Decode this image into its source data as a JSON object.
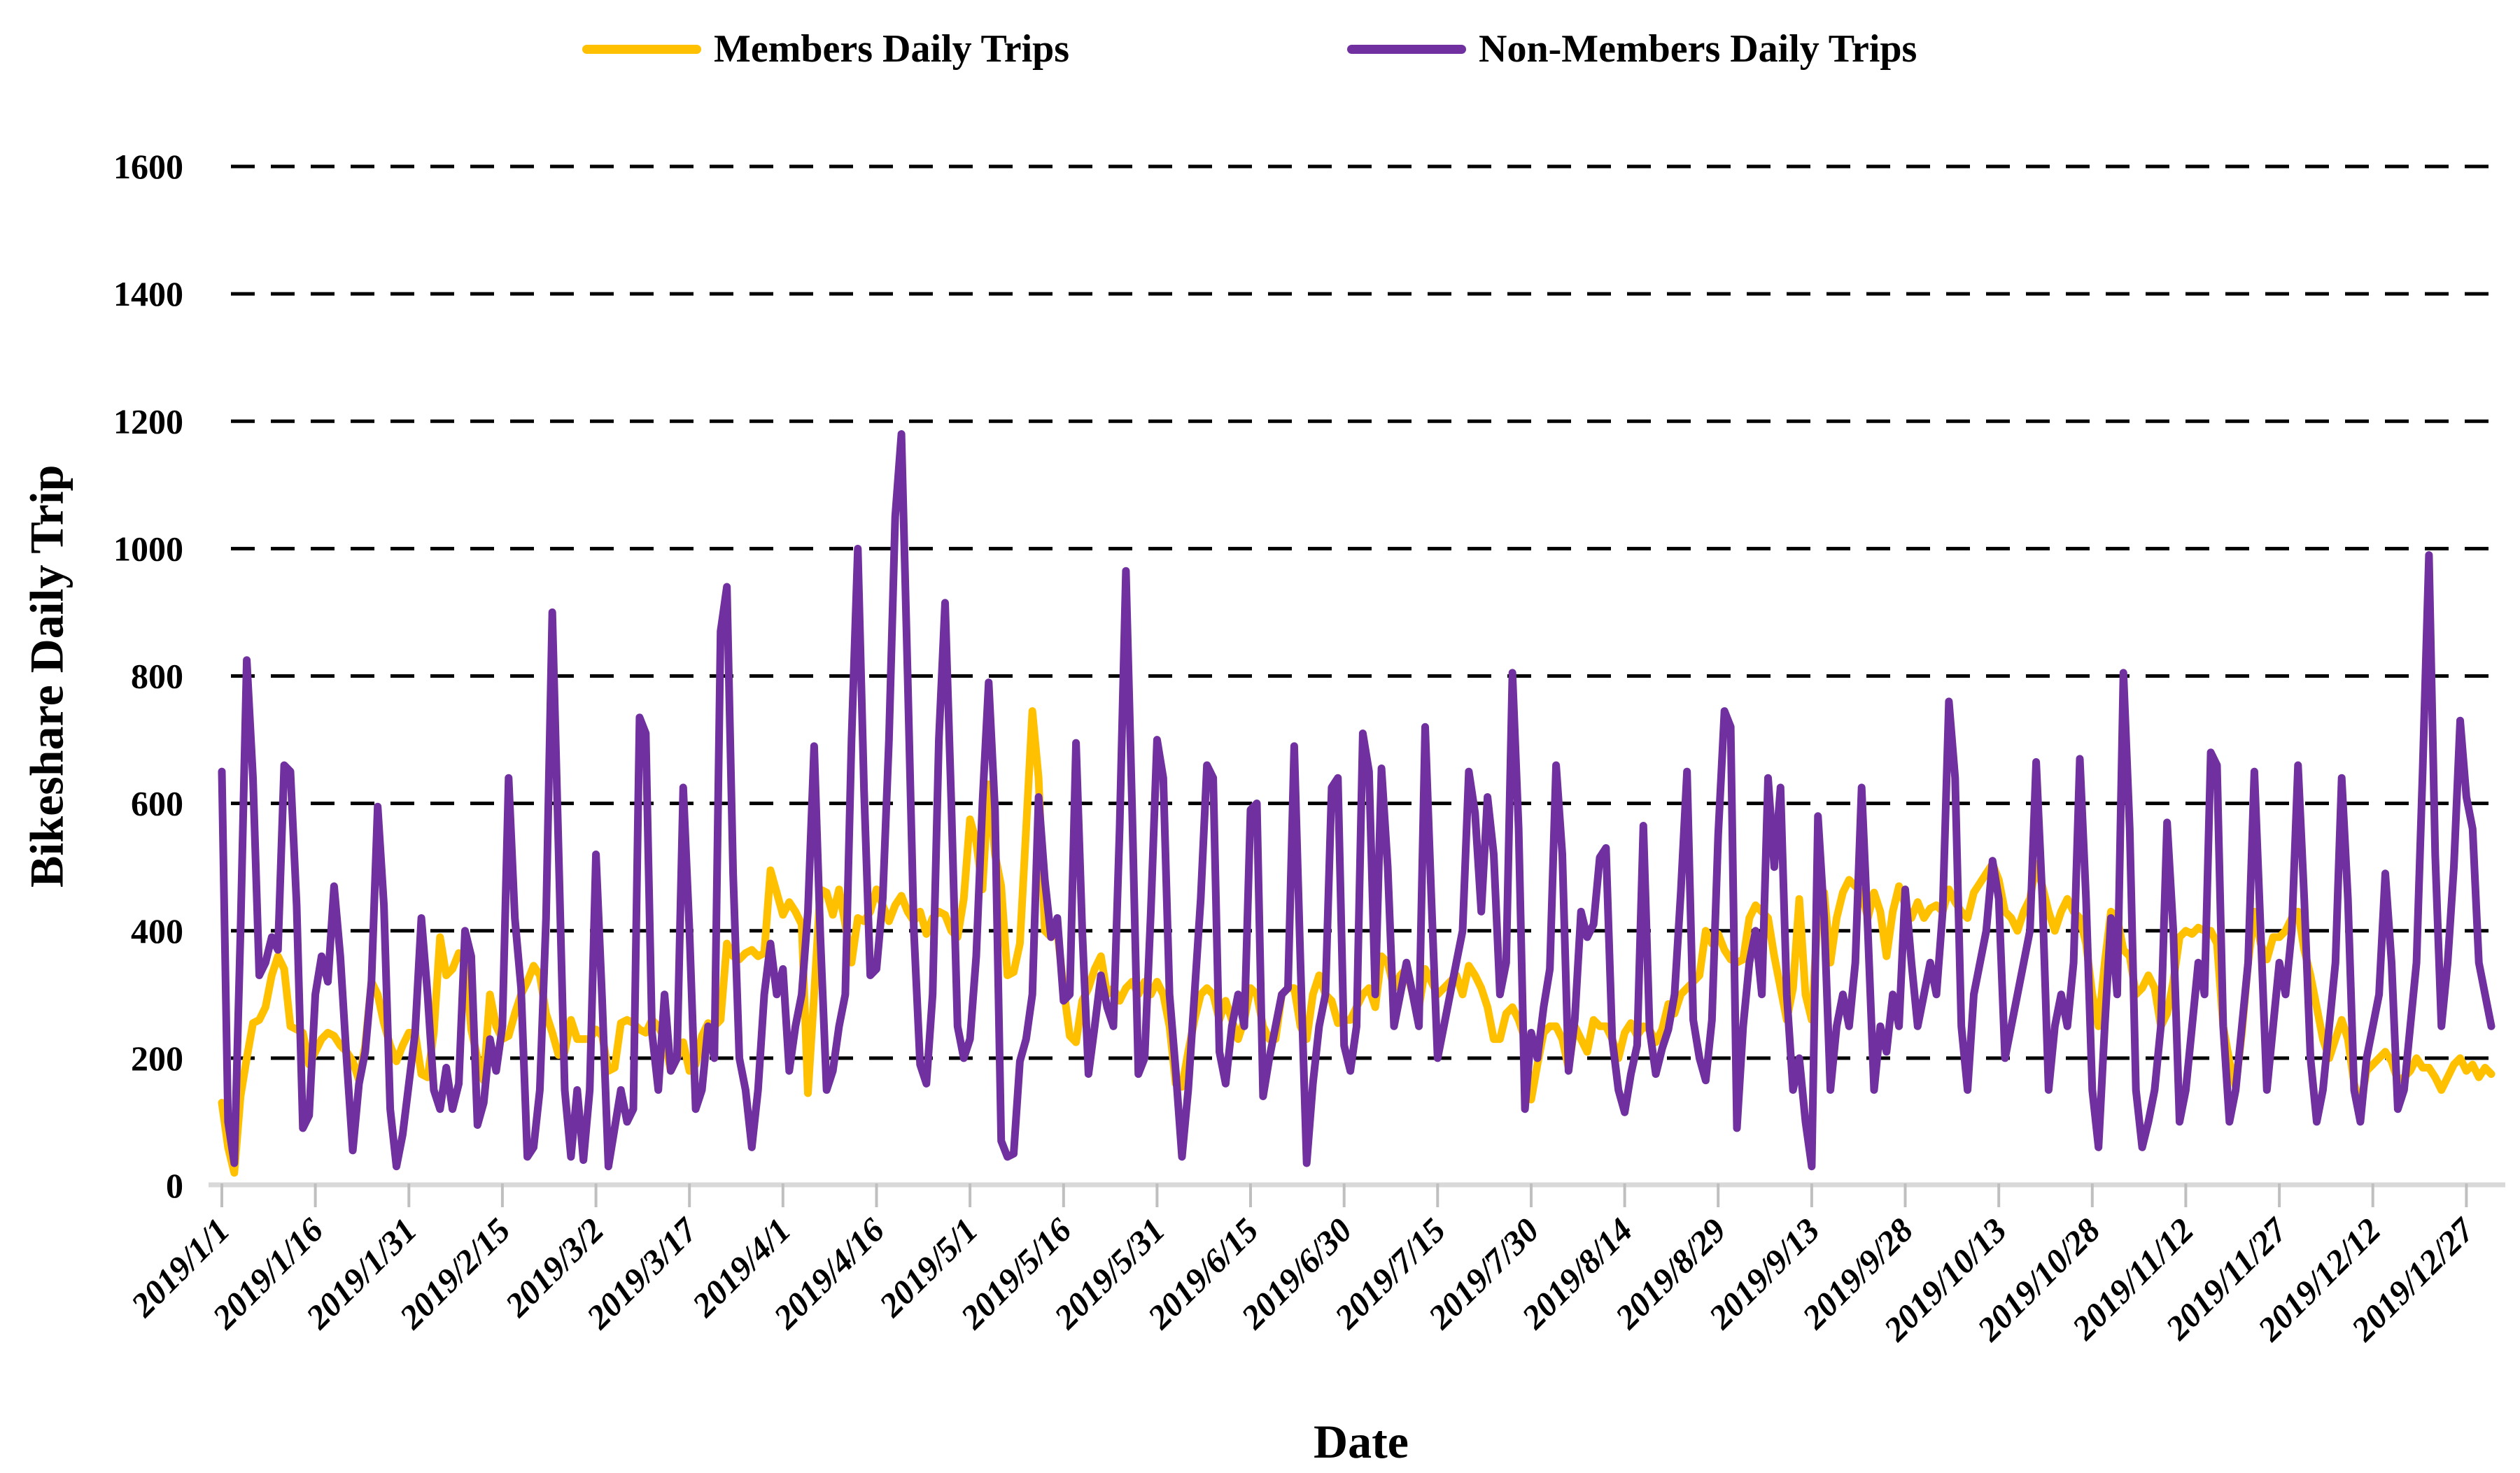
{
  "page": {
    "background": "#FFFFFF"
  },
  "legend": {
    "items": [
      {
        "label": "Members Daily Trips",
        "color": "#FFC000"
      },
      {
        "label": "Non-Members Daily Trips",
        "color": "#7030A0"
      }
    ]
  },
  "y_axis": {
    "title": "Bikeshare Daily Trip",
    "ticks": [
      0,
      200,
      400,
      600,
      800,
      1000,
      1200,
      1400,
      1600
    ],
    "min": 0,
    "max": 1600
  },
  "x_axis": {
    "title": "Date",
    "tick_interval_days": 15,
    "tick_labels": [
      "2019/1/1",
      "2019/1/16",
      "2019/1/31",
      "2019/2/15",
      "2019/3/2",
      "2019/3/17",
      "2019/4/1",
      "2019/4/16",
      "2019/5/1",
      "2019/5/16",
      "2019/5/31",
      "2019/6/15",
      "2019/6/30",
      "2019/7/15",
      "2019/7/30",
      "2019/8/14",
      "2019/8/29",
      "2019/9/13",
      "2019/9/28",
      "2019/10/13",
      "2019/10/28",
      "2019/11/12",
      "2019/11/27",
      "2019/12/12",
      "2019/12/27"
    ]
  },
  "chart_data": {
    "type": "line",
    "title": "",
    "xlabel": "Date",
    "ylabel": "Bikeshare Daily Trip",
    "x_frequency": "daily",
    "x_start": "2019/1/1",
    "x_end": "2019/12/31",
    "ylim": [
      0,
      1600
    ],
    "grid": "horizontal-dashed",
    "legend_position": "top",
    "series": [
      {
        "name": "Members Daily Trips",
        "color": "#FFC000",
        "values": [
          130,
          60,
          20,
          140,
          200,
          255,
          260,
          280,
          330,
          360,
          340,
          250,
          245,
          240,
          190,
          210,
          230,
          240,
          235,
          220,
          210,
          195,
          165,
          220,
          320,
          300,
          255,
          220,
          195,
          220,
          240,
          240,
          175,
          170,
          240,
          390,
          330,
          340,
          365,
          350,
          245,
          200,
          165,
          300,
          250,
          230,
          235,
          270,
          300,
          320,
          345,
          330,
          270,
          240,
          205,
          210,
          260,
          230,
          230,
          230,
          245,
          235,
          180,
          185,
          255,
          260,
          255,
          245,
          240,
          260,
          250,
          230,
          180,
          200,
          225,
          180,
          190,
          235,
          255,
          250,
          260,
          380,
          360,
          355,
          365,
          370,
          360,
          365,
          495,
          460,
          425,
          445,
          430,
          410,
          145,
          300,
          465,
          460,
          425,
          465,
          410,
          350,
          420,
          415,
          430,
          465,
          440,
          415,
          440,
          455,
          430,
          415,
          430,
          395,
          420,
          430,
          425,
          400,
          390,
          450,
          575,
          540,
          465,
          630,
          520,
          470,
          330,
          335,
          380,
          560,
          745,
          640,
          400,
          390,
          400,
          310,
          235,
          225,
          290,
          310,
          340,
          360,
          300,
          310,
          290,
          310,
          320,
          300,
          320,
          300,
          320,
          300,
          250,
          160,
          155,
          210,
          260,
          300,
          310,
          300,
          260,
          290,
          260,
          230,
          260,
          310,
          300,
          250,
          230,
          230,
          300,
          310,
          310,
          250,
          230,
          300,
          330,
          300,
          290,
          255,
          260,
          260,
          280,
          300,
          310,
          280,
          360,
          350,
          310,
          330,
          340,
          300,
          280,
          340,
          320,
          300,
          310,
          320,
          330,
          300,
          345,
          330,
          310,
          280,
          230,
          230,
          270,
          280,
          260,
          230,
          135,
          190,
          240,
          250,
          250,
          230,
          185,
          250,
          230,
          210,
          260,
          250,
          250,
          230,
          200,
          240,
          255,
          235,
          250,
          245,
          225,
          245,
          285,
          270,
          300,
          310,
          320,
          330,
          400,
          380,
          395,
          370,
          355,
          350,
          355,
          420,
          440,
          430,
          420,
          360,
          310,
          260,
          310,
          450,
          300,
          260,
          430,
          460,
          350,
          420,
          460,
          480,
          470,
          460,
          420,
          460,
          430,
          360,
          430,
          470,
          440,
          420,
          445,
          420,
          435,
          440,
          430,
          465,
          445,
          430,
          420,
          460,
          475,
          490,
          505,
          480,
          430,
          420,
          400,
          430,
          450,
          505,
          470,
          430,
          400,
          430,
          450,
          430,
          420,
          380,
          300,
          250,
          350,
          430,
          420,
          370,
          360,
          300,
          310,
          330,
          310,
          250,
          270,
          320,
          390,
          400,
          395,
          405,
          400,
          400,
          380,
          250,
          195,
          155,
          240,
          350,
          430,
          380,
          355,
          390,
          390,
          400,
          420,
          430,
          370,
          330,
          280,
          230,
          200,
          230,
          260,
          230,
          160,
          125,
          180,
          190,
          200,
          210,
          195,
          165,
          170,
          180,
          200,
          185,
          185,
          170,
          150,
          170,
          190,
          200,
          180,
          190,
          170,
          185,
          175
        ]
      },
      {
        "name": "Non-Members Daily Trips",
        "color": "#7030A0",
        "values": [
          650,
          100,
          35,
          400,
          825,
          640,
          330,
          350,
          390,
          370,
          660,
          650,
          440,
          90,
          110,
          300,
          360,
          320,
          470,
          360,
          200,
          55,
          160,
          210,
          320,
          595,
          440,
          120,
          30,
          80,
          160,
          240,
          420,
          300,
          150,
          120,
          185,
          120,
          160,
          400,
          360,
          95,
          130,
          230,
          180,
          250,
          640,
          420,
          310,
          45,
          60,
          150,
          420,
          900,
          530,
          150,
          45,
          150,
          40,
          150,
          520,
          290,
          30,
          90,
          150,
          100,
          120,
          735,
          710,
          240,
          150,
          300,
          180,
          200,
          625,
          400,
          120,
          150,
          250,
          200,
          870,
          940,
          490,
          200,
          150,
          60,
          150,
          300,
          380,
          300,
          340,
          180,
          250,
          300,
          430,
          690,
          390,
          150,
          180,
          250,
          300,
          700,
          1000,
          620,
          330,
          340,
          450,
          700,
          1050,
          1180,
          800,
          400,
          190,
          160,
          300,
          700,
          915,
          600,
          250,
          200,
          230,
          360,
          600,
          790,
          590,
          70,
          45,
          50,
          195,
          230,
          300,
          610,
          480,
          390,
          420,
          290,
          300,
          695,
          400,
          175,
          250,
          330,
          280,
          250,
          560,
          965,
          590,
          175,
          200,
          430,
          700,
          640,
          300,
          180,
          45,
          150,
          300,
          450,
          660,
          640,
          210,
          160,
          250,
          300,
          250,
          590,
          600,
          140,
          200,
          250,
          300,
          310,
          690,
          350,
          35,
          160,
          250,
          300,
          625,
          640,
          220,
          180,
          250,
          710,
          650,
          300,
          655,
          500,
          250,
          300,
          350,
          300,
          250,
          720,
          450,
          200,
          250,
          300,
          350,
          400,
          650,
          585,
          430,
          610,
          520,
          300,
          350,
          805,
          560,
          120,
          240,
          200,
          280,
          340,
          660,
          520,
          180,
          260,
          430,
          390,
          410,
          515,
          530,
          230,
          150,
          115,
          175,
          220,
          565,
          245,
          175,
          215,
          245,
          300,
          460,
          650,
          260,
          200,
          165,
          260,
          550,
          745,
          720,
          90,
          250,
          350,
          400,
          300,
          640,
          500,
          625,
          300,
          150,
          200,
          100,
          30,
          580,
          420,
          150,
          250,
          300,
          250,
          350,
          625,
          400,
          150,
          250,
          210,
          300,
          250,
          465,
          350,
          250,
          300,
          350,
          300,
          430,
          760,
          640,
          250,
          150,
          300,
          350,
          400,
          510,
          450,
          200,
          250,
          300,
          350,
          400,
          665,
          450,
          150,
          250,
          300,
          250,
          350,
          670,
          450,
          150,
          60,
          250,
          420,
          300,
          805,
          560,
          150,
          60,
          100,
          150,
          250,
          570,
          400,
          100,
          150,
          250,
          350,
          300,
          680,
          660,
          250,
          100,
          150,
          250,
          350,
          650,
          400,
          150,
          250,
          350,
          300,
          400,
          660,
          450,
          200,
          100,
          150,
          250,
          350,
          640,
          450,
          150,
          100,
          200,
          250,
          300,
          490,
          350,
          120,
          150,
          250,
          350,
          655,
          990,
          520,
          250,
          350,
          500,
          730,
          610,
          560,
          350,
          300,
          250
        ]
      }
    ]
  }
}
